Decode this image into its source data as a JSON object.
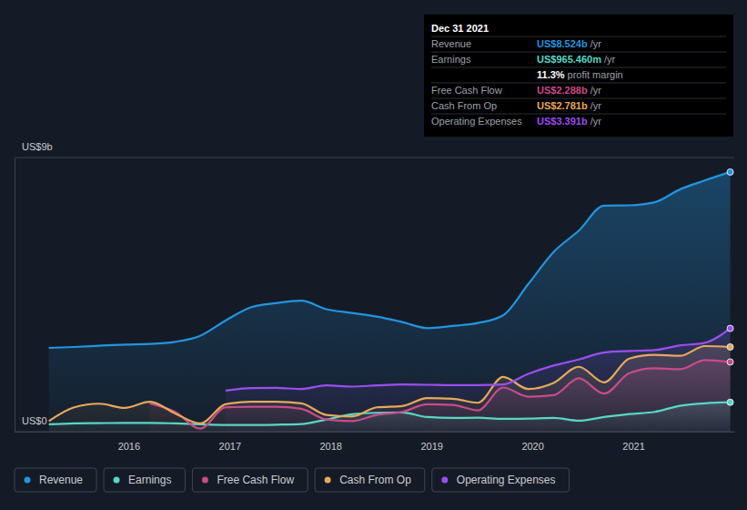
{
  "chart_data": {
    "type": "area",
    "x": [
      2015.21,
      2015.46,
      2015.71,
      2015.96,
      2016.21,
      2016.46,
      2016.71,
      2016.96,
      2017.21,
      2017.46,
      2017.71,
      2017.96,
      2018.21,
      2018.46,
      2018.71,
      2018.96,
      2019.21,
      2019.46,
      2019.71,
      2019.96,
      2020.21,
      2020.46,
      2020.71,
      2020.96,
      2021.21,
      2021.46,
      2021.71,
      2021.96
    ],
    "series": [
      {
        "name": "Revenue",
        "color": "#2394df",
        "values": [
          2.75,
          2.78,
          2.82,
          2.86,
          2.88,
          2.95,
          3.15,
          3.65,
          4.08,
          4.22,
          4.3,
          4.02,
          3.9,
          3.78,
          3.6,
          3.4,
          3.47,
          3.57,
          3.82,
          4.85,
          5.9,
          6.6,
          7.42,
          7.43,
          7.53,
          7.95,
          8.25,
          8.524
        ]
      },
      {
        "name": "Earnings",
        "color": "#58d6c6",
        "values": [
          0.24,
          0.27,
          0.28,
          0.29,
          0.29,
          0.27,
          0.24,
          0.22,
          0.22,
          0.23,
          0.25,
          0.4,
          0.57,
          0.62,
          0.63,
          0.48,
          0.45,
          0.46,
          0.42,
          0.43,
          0.45,
          0.36,
          0.48,
          0.58,
          0.65,
          0.85,
          0.93,
          0.96546
        ]
      },
      {
        "name": "Free Cash Flow",
        "color": "#c94b8a",
        "values": [
          null,
          null,
          null,
          null,
          0.93,
          0.65,
          0.1,
          0.8,
          0.82,
          0.82,
          0.75,
          0.4,
          0.35,
          0.55,
          0.65,
          0.9,
          0.88,
          0.7,
          1.45,
          1.15,
          1.2,
          1.75,
          1.25,
          1.92,
          2.08,
          2.05,
          2.35,
          2.288
        ]
      },
      {
        "name": "Cash From Op",
        "color": "#e6a95a",
        "values": [
          0.35,
          0.8,
          0.92,
          0.78,
          0.98,
          0.6,
          0.27,
          0.9,
          0.98,
          0.98,
          0.93,
          0.55,
          0.5,
          0.8,
          0.84,
          1.1,
          1.08,
          0.95,
          1.8,
          1.4,
          1.6,
          2.13,
          1.62,
          2.4,
          2.52,
          2.49,
          2.81,
          2.781
        ]
      },
      {
        "name": "Operating Expenses",
        "color": "#9b4ef0",
        "values": [
          null,
          null,
          null,
          null,
          null,
          null,
          null,
          1.35,
          1.43,
          1.44,
          1.4,
          1.52,
          1.48,
          1.52,
          1.55,
          1.54,
          1.53,
          1.53,
          1.55,
          1.9,
          2.17,
          2.37,
          2.6,
          2.65,
          2.68,
          2.83,
          2.92,
          3.391
        ]
      }
    ],
    "xlim": [
      2014.87,
      2022.0
    ],
    "xticks": [
      2016,
      2017,
      2018,
      2019,
      2020,
      2021
    ],
    "ylim": [
      0,
      9
    ],
    "yticks": [
      {
        "value": 0,
        "label": "US$0"
      },
      {
        "value": 9,
        "label": "US$9b"
      }
    ],
    "grid": true,
    "legend": "bottom",
    "annotation": {
      "title": "Dec 31 2021",
      "rows": [
        {
          "label": "Revenue",
          "value": "US$8.524b",
          "unit": "/yr"
        },
        {
          "label": "Earnings",
          "value": "US$965.460m",
          "unit": "/yr"
        },
        {
          "value": "11.3%",
          "label": "profit margin"
        },
        {
          "label": "Free Cash Flow",
          "value": "US$2.288b",
          "unit": "/yr"
        },
        {
          "label": "Cash From Op",
          "value": "US$2.781b",
          "unit": "/yr"
        },
        {
          "label": "Operating Expenses",
          "value": "US$3.391b",
          "unit": "/yr"
        }
      ]
    }
  }
}
